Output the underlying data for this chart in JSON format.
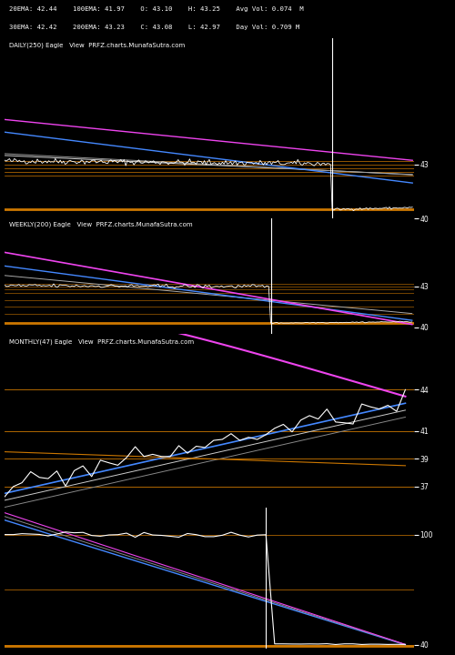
{
  "bg_color": "#000000",
  "text_color": "#ffffff",
  "orange_color": "#cc7700",
  "blue_color": "#4488ff",
  "magenta_color": "#ee44ee",
  "gray_color": "#888888",
  "white_color": "#ffffff",
  "header_lines": [
    "20EMA: 42.44    100EMA: 41.97    O: 43.10    H: 43.25    Avg Vol: 0.074  M",
    "30EMA: 42.42    200EMA: 43.23    C: 43.08    L: 42.97    Day Vol: 0.709 M"
  ],
  "daily_label": "DAILY(250) Eagle   View  PRFZ.charts.MunafaSutra.com",
  "weekly_label": "WEEKLY(200) Eagle   View  PRFZ.charts.MunafaSutra.com",
  "monthly_label": "MONTHLY(47) Eagle   View  PRFZ.charts.MunafaSutra.com",
  "daily_yticks": [
    43,
    40
  ],
  "weekly_yticks": [
    43,
    40
  ],
  "monthly_price_yticks": [
    44,
    41,
    39,
    37
  ],
  "monthly_lower_yticks": [
    100,
    40
  ]
}
